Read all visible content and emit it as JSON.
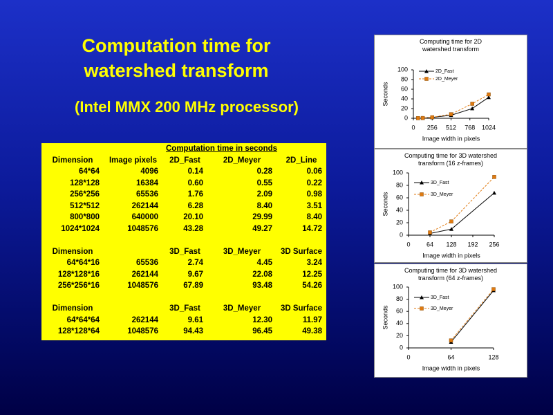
{
  "slide": {
    "title": "Computation time for watershed transform",
    "subtitle": "(Intel MMX 200 MHz processor)"
  },
  "table": {
    "caption": "Computation time in seconds",
    "sections": [
      {
        "header": [
          "Dimension",
          "Image pixels",
          "2D_Fast",
          "2D_Meyer",
          "2D_Line"
        ],
        "rows": [
          [
            "64*64",
            "4096",
            "0.14",
            "0.28",
            "0.06"
          ],
          [
            "128*128",
            "16384",
            "0.60",
            "0.55",
            "0.22"
          ],
          [
            "256*256",
            "65536",
            "1.76",
            "2.09",
            "0.98"
          ],
          [
            "512*512",
            "262144",
            "6.28",
            "8.40",
            "3.51"
          ],
          [
            "800*800",
            "640000",
            "20.10",
            "29.99",
            "8.40"
          ],
          [
            "1024*1024",
            "1048576",
            "43.28",
            "49.27",
            "14.72"
          ]
        ]
      },
      {
        "header": [
          "Dimension",
          null,
          "3D_Fast",
          "3D_Meyer",
          "3D  Surface"
        ],
        "rows": [
          [
            "64*64*16",
            "65536",
            "2.74",
            "4.45",
            "3.24"
          ],
          [
            "128*128*16",
            "262144",
            "9.67",
            "22.08",
            "12.25"
          ],
          [
            "256*256*16",
            "1048576",
            "67.89",
            "93.48",
            "54.26"
          ]
        ]
      },
      {
        "header": [
          "Dimension",
          null,
          "3D_Fast",
          "3D_Meyer",
          "3D  Surface"
        ],
        "rows": [
          [
            "64*64*64",
            "262144",
            "9.61",
            "12.30",
            "11.97"
          ],
          [
            "128*128*64",
            "1048576",
            "94.43",
            "96.45",
            "49.38"
          ]
        ]
      }
    ]
  },
  "chart_data": [
    {
      "type": "line",
      "title": "Computing time for 2D watershed transform",
      "x_label": "Image width in pixels",
      "y_label": "Seconds",
      "x": [
        64,
        128,
        256,
        512,
        800,
        1024
      ],
      "xlim": [
        0,
        1024
      ],
      "xticks": [
        0,
        256,
        512,
        768,
        1024
      ],
      "ylim": [
        0,
        100
      ],
      "yticks": [
        0,
        20,
        40,
        60,
        80,
        100
      ],
      "legend": "top-left",
      "series": [
        {
          "name": "2D_Fast",
          "color": "#000000",
          "marker": "triangle",
          "dashed": false,
          "values": [
            0.14,
            0.6,
            1.76,
            6.28,
            20.1,
            43.28
          ]
        },
        {
          "name": "2D_Meyer",
          "color": "#e07a10",
          "marker": "square",
          "dashed": true,
          "values": [
            0.28,
            0.55,
            2.09,
            8.4,
            29.99,
            49.27
          ]
        }
      ]
    },
    {
      "type": "line",
      "title": "Computing time for 3D watershed transform (16 z-frames)",
      "x_label": "Image width in pixels",
      "y_label": "Seconds",
      "x": [
        64,
        128,
        256
      ],
      "xlim": [
        0,
        256
      ],
      "xticks": [
        0,
        64,
        128,
        192,
        256
      ],
      "ylim": [
        0,
        100
      ],
      "yticks": [
        0,
        20,
        40,
        60,
        80,
        100
      ],
      "legend": "top-left",
      "series": [
        {
          "name": "3D_Fast",
          "color": "#000000",
          "marker": "triangle",
          "dashed": false,
          "values": [
            2.74,
            9.67,
            67.89
          ]
        },
        {
          "name": "3D_Meyer",
          "color": "#e07a10",
          "marker": "square",
          "dashed": true,
          "values": [
            4.45,
            22.08,
            93.48
          ]
        }
      ]
    },
    {
      "type": "line",
      "title": "Computing time for 3D watershed transform (64 z-frames)",
      "x_label": "Image width in pixels",
      "y_label": "Seconds",
      "x": [
        64,
        128
      ],
      "xlim": [
        0,
        128
      ],
      "xticks": [
        0,
        64,
        128
      ],
      "ylim": [
        0,
        100
      ],
      "yticks": [
        0,
        20,
        40,
        60,
        80,
        100
      ],
      "legend": "top-left",
      "series": [
        {
          "name": "3D_Fast",
          "color": "#000000",
          "marker": "triangle",
          "dashed": false,
          "values": [
            9.61,
            94.43
          ]
        },
        {
          "name": "3D_Meyer",
          "color": "#e07a10",
          "marker": "square",
          "dashed": true,
          "values": [
            12.3,
            96.45
          ]
        }
      ]
    }
  ]
}
